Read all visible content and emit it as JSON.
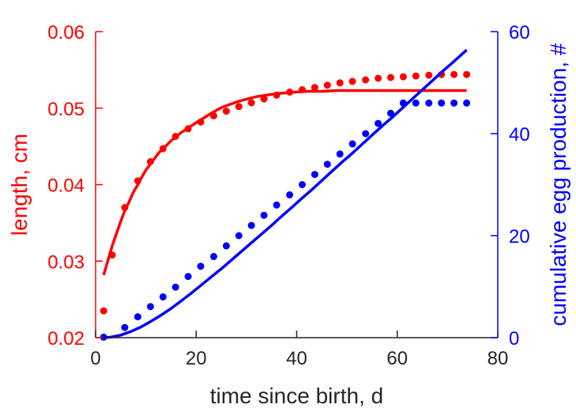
{
  "chart_data": {
    "type": "line",
    "title": "",
    "xlabel": "time since birth, d",
    "ylabel_left": "length, cm",
    "ylabel_right": "cumulative egg production, #",
    "xlim": [
      0,
      80
    ],
    "ylim_left": [
      0.02,
      0.06
    ],
    "ylim_right": [
      0,
      60
    ],
    "x_ticks": [
      "0",
      "20",
      "40",
      "60",
      "80"
    ],
    "y_left_ticks": [
      "0.02",
      "0.03",
      "0.04",
      "0.05",
      "0.06"
    ],
    "y_right_ticks": [
      "0",
      "20",
      "40",
      "60"
    ],
    "grid": false,
    "legend": "none",
    "colors": {
      "left": "#ff0000",
      "right": "#0000ff",
      "axis": "#262626"
    },
    "series": [
      {
        "kind": "scatter",
        "axis": "left",
        "x": [
          1.6,
          3.3,
          5.8,
          8.4,
          10.9,
          13.4,
          15.9,
          18.4,
          20.9,
          23.5,
          26.0,
          28.5,
          31.0,
          33.5,
          36.0,
          38.6,
          41.1,
          43.6,
          46.1,
          48.6,
          51.1,
          53.7,
          56.2,
          58.7,
          61.2,
          63.7,
          66.3,
          68.8,
          71.3,
          73.8
        ],
        "y": [
          0.0235,
          0.0308,
          0.037,
          0.0405,
          0.043,
          0.0447,
          0.0463,
          0.0473,
          0.0482,
          0.049,
          0.0496,
          0.0502,
          0.0507,
          0.0512,
          0.0517,
          0.0521,
          0.0524,
          0.0527,
          0.053,
          0.0533,
          0.0535,
          0.0537,
          0.0539,
          0.054,
          0.0541,
          0.0542,
          0.0543,
          0.0544,
          0.0544,
          0.0544
        ]
      },
      {
        "kind": "line",
        "axis": "left",
        "x": [
          1.6,
          2.5,
          3.3,
          4.2,
          5.0,
          5.8,
          6.7,
          7.5,
          8.4,
          9.2,
          10.0,
          10.9,
          11.7,
          12.5,
          13.4,
          14.2,
          15.1,
          15.9,
          17.0,
          18.4,
          20.0,
          21.7,
          23.4,
          25.1,
          26.8,
          28.5,
          30.2,
          32.0,
          34.0,
          36.0,
          38.0,
          40.0,
          42.0,
          45.0,
          48.0,
          52.0,
          56.0,
          60.0,
          64.0,
          68.0,
          72.0,
          73.8
        ],
        "y": [
          0.0282,
          0.0302,
          0.032,
          0.0337,
          0.0352,
          0.0366,
          0.0378,
          0.039,
          0.04,
          0.041,
          0.0419,
          0.0427,
          0.0434,
          0.0441,
          0.0447,
          0.0452,
          0.0458,
          0.0462,
          0.0468,
          0.0474,
          0.0481,
          0.0488,
          0.0495,
          0.0501,
          0.0505,
          0.0509,
          0.0512,
          0.0515,
          0.0517,
          0.0519,
          0.052,
          0.0521,
          0.0522,
          0.0522,
          0.0523,
          0.0523,
          0.0523,
          0.0523,
          0.0523,
          0.0523,
          0.0523,
          0.0523
        ]
      },
      {
        "kind": "scatter",
        "axis": "right",
        "x": [
          1.6,
          5.8,
          8.4,
          10.9,
          13.4,
          15.9,
          18.4,
          20.9,
          23.5,
          26.0,
          28.5,
          31.0,
          33.5,
          36.0,
          38.6,
          41.1,
          43.6,
          46.1,
          48.6,
          51.1,
          53.7,
          56.2,
          58.7,
          61.2,
          63.7,
          66.3,
          68.8,
          71.3,
          73.8
        ],
        "y": [
          0.1,
          2.0,
          4.1,
          6.1,
          8.0,
          9.9,
          12.0,
          14.0,
          15.9,
          18.0,
          20.0,
          22.0,
          24.0,
          26.0,
          28.0,
          30.0,
          32.0,
          34.0,
          36.0,
          38.0,
          40.0,
          42.0,
          44.0,
          46.0,
          46.0,
          46.0,
          46.0,
          46.0,
          46.0
        ]
      },
      {
        "kind": "line",
        "axis": "right",
        "x": [
          1.6,
          3.0,
          5.0,
          7.0,
          9.0,
          11.0,
          13.0,
          15.0,
          17.0,
          19.0,
          21.0,
          23.0,
          25.0,
          27.0,
          29.0,
          31.0,
          33.0,
          35.0,
          37.0,
          39.0,
          41.0,
          43.0,
          45.0,
          47.0,
          49.0,
          51.0,
          53.0,
          55.0,
          57.0,
          59.0,
          61.0,
          63.0,
          65.0,
          67.0,
          69.0,
          71.0,
          73.8
        ],
        "y": [
          0.0,
          0.1,
          0.5,
          1.2,
          2.1,
          3.2,
          4.4,
          5.7,
          7.2,
          8.7,
          10.3,
          11.9,
          13.5,
          15.2,
          16.9,
          18.6,
          20.3,
          22.0,
          23.8,
          25.5,
          27.3,
          29.0,
          30.8,
          32.6,
          34.4,
          36.1,
          37.9,
          39.7,
          41.5,
          43.2,
          45.0,
          46.8,
          48.6,
          50.4,
          52.2,
          53.9,
          56.4
        ]
      }
    ]
  }
}
